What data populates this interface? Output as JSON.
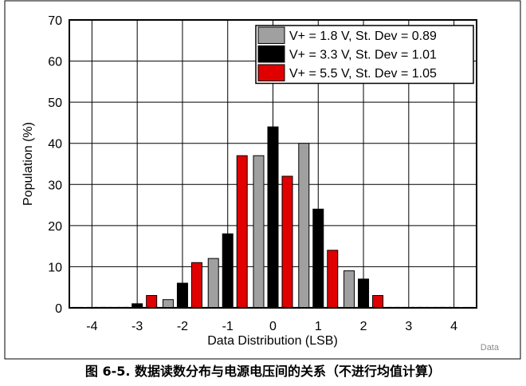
{
  "chart_data": {
    "type": "bar",
    "categories": [
      "-4",
      "-3.5",
      "-3",
      "-2.5",
      "-2",
      "-1.5",
      "-1",
      "-0.5",
      "0",
      "0.5",
      "1",
      "1.5",
      "2",
      "2.5",
      "3",
      "3.5",
      "4"
    ],
    "series": [
      {
        "name": "V+ = 1.8 V, St. Dev = 0.89",
        "color": "#a0a0a0",
        "values": [
          0,
          0,
          0,
          0,
          2,
          0,
          12,
          0,
          37,
          0,
          40,
          0,
          9,
          0,
          0,
          0,
          0
        ]
      },
      {
        "name": "V+ = 3.3 V, St. Dev = 1.01",
        "color": "#000000",
        "values": [
          0,
          0,
          1,
          0,
          6,
          0,
          18,
          0,
          44,
          0,
          24,
          0,
          7,
          0,
          0,
          0,
          0
        ]
      },
      {
        "name": "V+ = 5.5 V, St. Dev = 1.05",
        "color": "#e00000",
        "values": [
          0,
          0,
          3,
          0,
          11,
          0,
          37,
          0,
          32,
          0,
          14,
          0,
          3,
          0,
          0,
          0,
          0
        ]
      }
    ],
    "x_ticks": [
      "-4",
      "-3",
      "-2",
      "-1",
      "0",
      "1",
      "2",
      "3",
      "4"
    ],
    "y_ticks": [
      "0",
      "10",
      "20",
      "30",
      "40",
      "50",
      "60",
      "70"
    ],
    "xlabel": "Data Distribution (LSB)",
    "ylabel": "Population (%)",
    "xlim": [
      -4.5,
      4.5
    ],
    "ylim": [
      0,
      70
    ],
    "grid": true,
    "legend_position": "top-right"
  },
  "caption": "图 6-5. 数据读数分布与电源电压间的关系（不进行均值计算）",
  "source_label": "Data"
}
